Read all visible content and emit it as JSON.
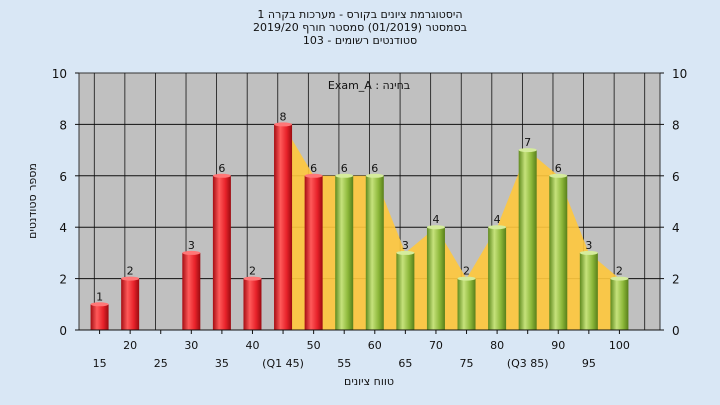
{
  "title_lines": [
    "היסטוגרמת ציונים בקורס - מערכות בקרה 1",
    "בסמסטר  (01/2019)  סמסטר חורף 2019/20",
    "103 - סטודנטים רשומים"
  ],
  "chart_data": {
    "type": "bar",
    "annotation": "Exam_A : בחינה",
    "xlabel": "טווח ציונים",
    "ylabel": "מספר סטודנטים",
    "ylim": [
      0,
      10
    ],
    "yticks": [
      0,
      2,
      4,
      6,
      8,
      10
    ],
    "grid": true,
    "categories": [
      15,
      20,
      25,
      30,
      35,
      40,
      45,
      50,
      55,
      60,
      65,
      70,
      75,
      80,
      85,
      90,
      95,
      100
    ],
    "tick_labels_lower": [
      "15",
      "25",
      "35",
      "(Q1 45)",
      "55",
      "65",
      "75",
      "(Q3 85)",
      "95"
    ],
    "tick_labels_upper": [
      "20",
      "30",
      "40",
      "50",
      "60",
      "70",
      "80",
      "90",
      "100"
    ],
    "values": [
      1,
      2,
      0,
      3,
      6,
      2,
      8,
      6,
      6,
      6,
      3,
      4,
      2,
      4,
      7,
      6,
      3,
      2
    ],
    "colors": {
      "below_median": "#e8222a",
      "above_median": "#8db83a",
      "area": "#ffc83c",
      "plot_bg": "#c0c0c0",
      "bg": "#d9e7f5"
    },
    "red_until": 50
  }
}
